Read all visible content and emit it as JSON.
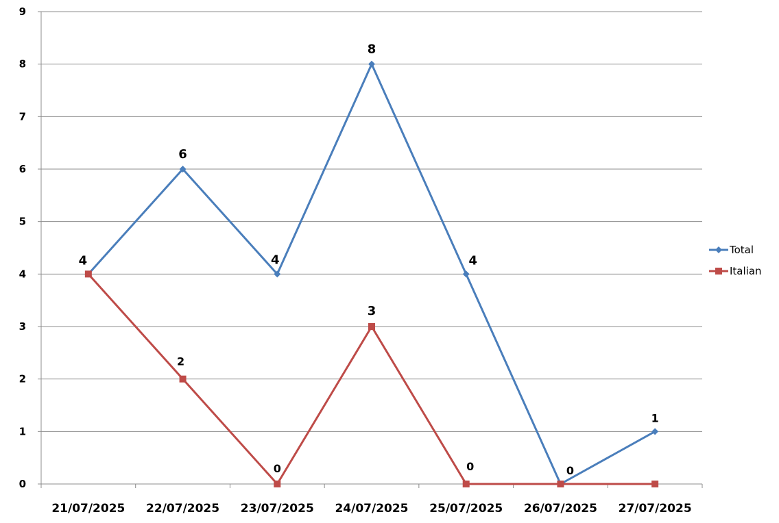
{
  "chart_data": {
    "type": "line",
    "categories": [
      "21/07/2025",
      "22/07/2025",
      "23/07/2025",
      "24/07/2025",
      "25/07/2025",
      "26/07/2025",
      "27/07/2025"
    ],
    "series": [
      {
        "name": "Total",
        "values": [
          4,
          6,
          4,
          8,
          4,
          0,
          1
        ],
        "color": "#4a7ebb",
        "marker": "diamond"
      },
      {
        "name": "Italian",
        "values": [
          4,
          2,
          0,
          3,
          0,
          0,
          0
        ],
        "color": "#be4b48",
        "marker": "square"
      }
    ],
    "data_labels": [
      {
        "series": "Total",
        "index": 0,
        "text": "4"
      },
      {
        "series": "Total",
        "index": 1,
        "text": "6"
      },
      {
        "series": "Total",
        "index": 2,
        "text": "4"
      },
      {
        "series": "Total",
        "index": 3,
        "text": "8"
      },
      {
        "series": "Total",
        "index": 4,
        "text": "4"
      },
      {
        "series": "Total",
        "index": 5,
        "text": "0"
      },
      {
        "series": "Total",
        "index": 6,
        "text": "1"
      },
      {
        "series": "Italian",
        "index": 1,
        "text": "2"
      },
      {
        "series": "Italian",
        "index": 2,
        "text": "0"
      },
      {
        "series": "Italian",
        "index": 3,
        "text": "3"
      },
      {
        "series": "Italian",
        "index": 4,
        "text": "0"
      }
    ],
    "yticks": [
      "0",
      "1",
      "2",
      "3",
      "4",
      "5",
      "6",
      "7",
      "8",
      "9"
    ],
    "ylim": [
      0,
      9
    ],
    "grid": true,
    "legend": "right"
  }
}
